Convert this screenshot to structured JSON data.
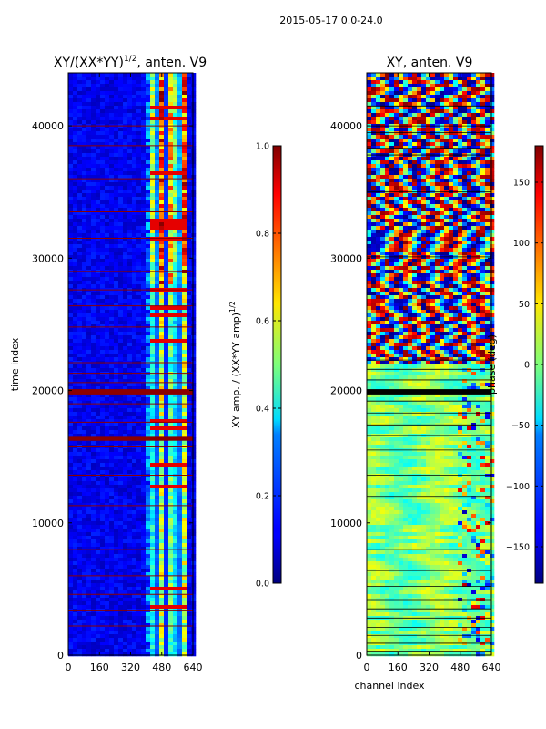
{
  "figure_title": "2015-05-17 0.0-24.0",
  "chart_data": [
    {
      "type": "heatmap",
      "title": "XY/(XX*YY)^{1/2}, anten. V9",
      "title_main": "XY/(XX*YY)",
      "title_sup": "1/2",
      "title_rest": ", anten. V9",
      "xlabel": "",
      "ylabel": "time index",
      "xlim": [
        0,
        640
      ],
      "ylim": [
        0,
        44000
      ],
      "xticks": [
        0,
        160,
        320,
        480,
        640
      ],
      "xtick_labels": [
        "0",
        "160",
        "320",
        "480",
        "640"
      ],
      "yticks": [
        0,
        10000,
        20000,
        30000,
        40000
      ],
      "ytick_labels": [
        "0",
        "10000",
        "20000",
        "30000",
        "40000"
      ],
      "colormap": "jet",
      "colorbar": {
        "label": "XY amp. / (XX*YY amp)^{1/2}",
        "label_main": "XY amp. / (XX*YY amp)",
        "label_sup": "1/2",
        "range": [
          0,
          1
        ],
        "ticks": [
          0.0,
          0.2,
          0.4,
          0.6,
          0.8,
          1.0
        ],
        "tick_labels": [
          "0.0",
          "0.2",
          "0.4",
          "0.6",
          "0.8",
          "1.0"
        ]
      },
      "flagged_time_bands": [
        [
          19700,
          20100
        ],
        [
          16200,
          16500
        ]
      ],
      "flag_lines": [
        1000,
        2200,
        3400,
        4600,
        6000,
        8000,
        11300,
        13600,
        15800,
        17600,
        19000,
        20600,
        21300,
        22100,
        24800,
        26400,
        27600,
        29000,
        31500,
        33500,
        36000,
        38500,
        40000
      ],
      "structure": "low amplitude (about 0.05-0.15) for channels 0-400; high amplitude (about 0.4-1.0) in bands between channels 400-600, strongest above time index 28000"
    },
    {
      "type": "heatmap",
      "title": "XY, anten. V9",
      "xlabel": "channel index",
      "ylabel": "",
      "xlim": [
        0,
        640
      ],
      "ylim": [
        0,
        44000
      ],
      "xticks": [
        0,
        160,
        320,
        480,
        640
      ],
      "xtick_labels": [
        "0",
        "160",
        "320",
        "480",
        "640"
      ],
      "yticks": [
        0,
        10000,
        20000,
        30000,
        40000
      ],
      "ytick_labels": [
        "0",
        "10000",
        "20000",
        "30000",
        "40000"
      ],
      "colormap": "jet",
      "colorbar": {
        "label": "phase (deg)",
        "range": [
          -180,
          180
        ],
        "ticks": [
          -150,
          -100,
          -50,
          0,
          50,
          100,
          150
        ],
        "tick_labels": [
          "−150",
          "−100",
          "−50",
          "0",
          "50",
          "100",
          "150"
        ]
      },
      "flagged_time_bands": [
        [
          19700,
          20100
        ]
      ],
      "flag_lines": [
        300,
        900,
        1500,
        2100,
        2800,
        3500,
        4200,
        5200,
        6400,
        8000,
        10300,
        12000,
        13600,
        15500,
        16600,
        17400,
        18300,
        19200,
        20800,
        21600,
        22300,
        30100,
        35000,
        37800,
        38300,
        39500,
        40000,
        41500
      ],
      "structure": "phase mostly near 0 deg (green/yellow) below time index 22000; large wrapping phase (red/blue, -180 to 180 deg) between time index 22000 and 44000"
    }
  ]
}
